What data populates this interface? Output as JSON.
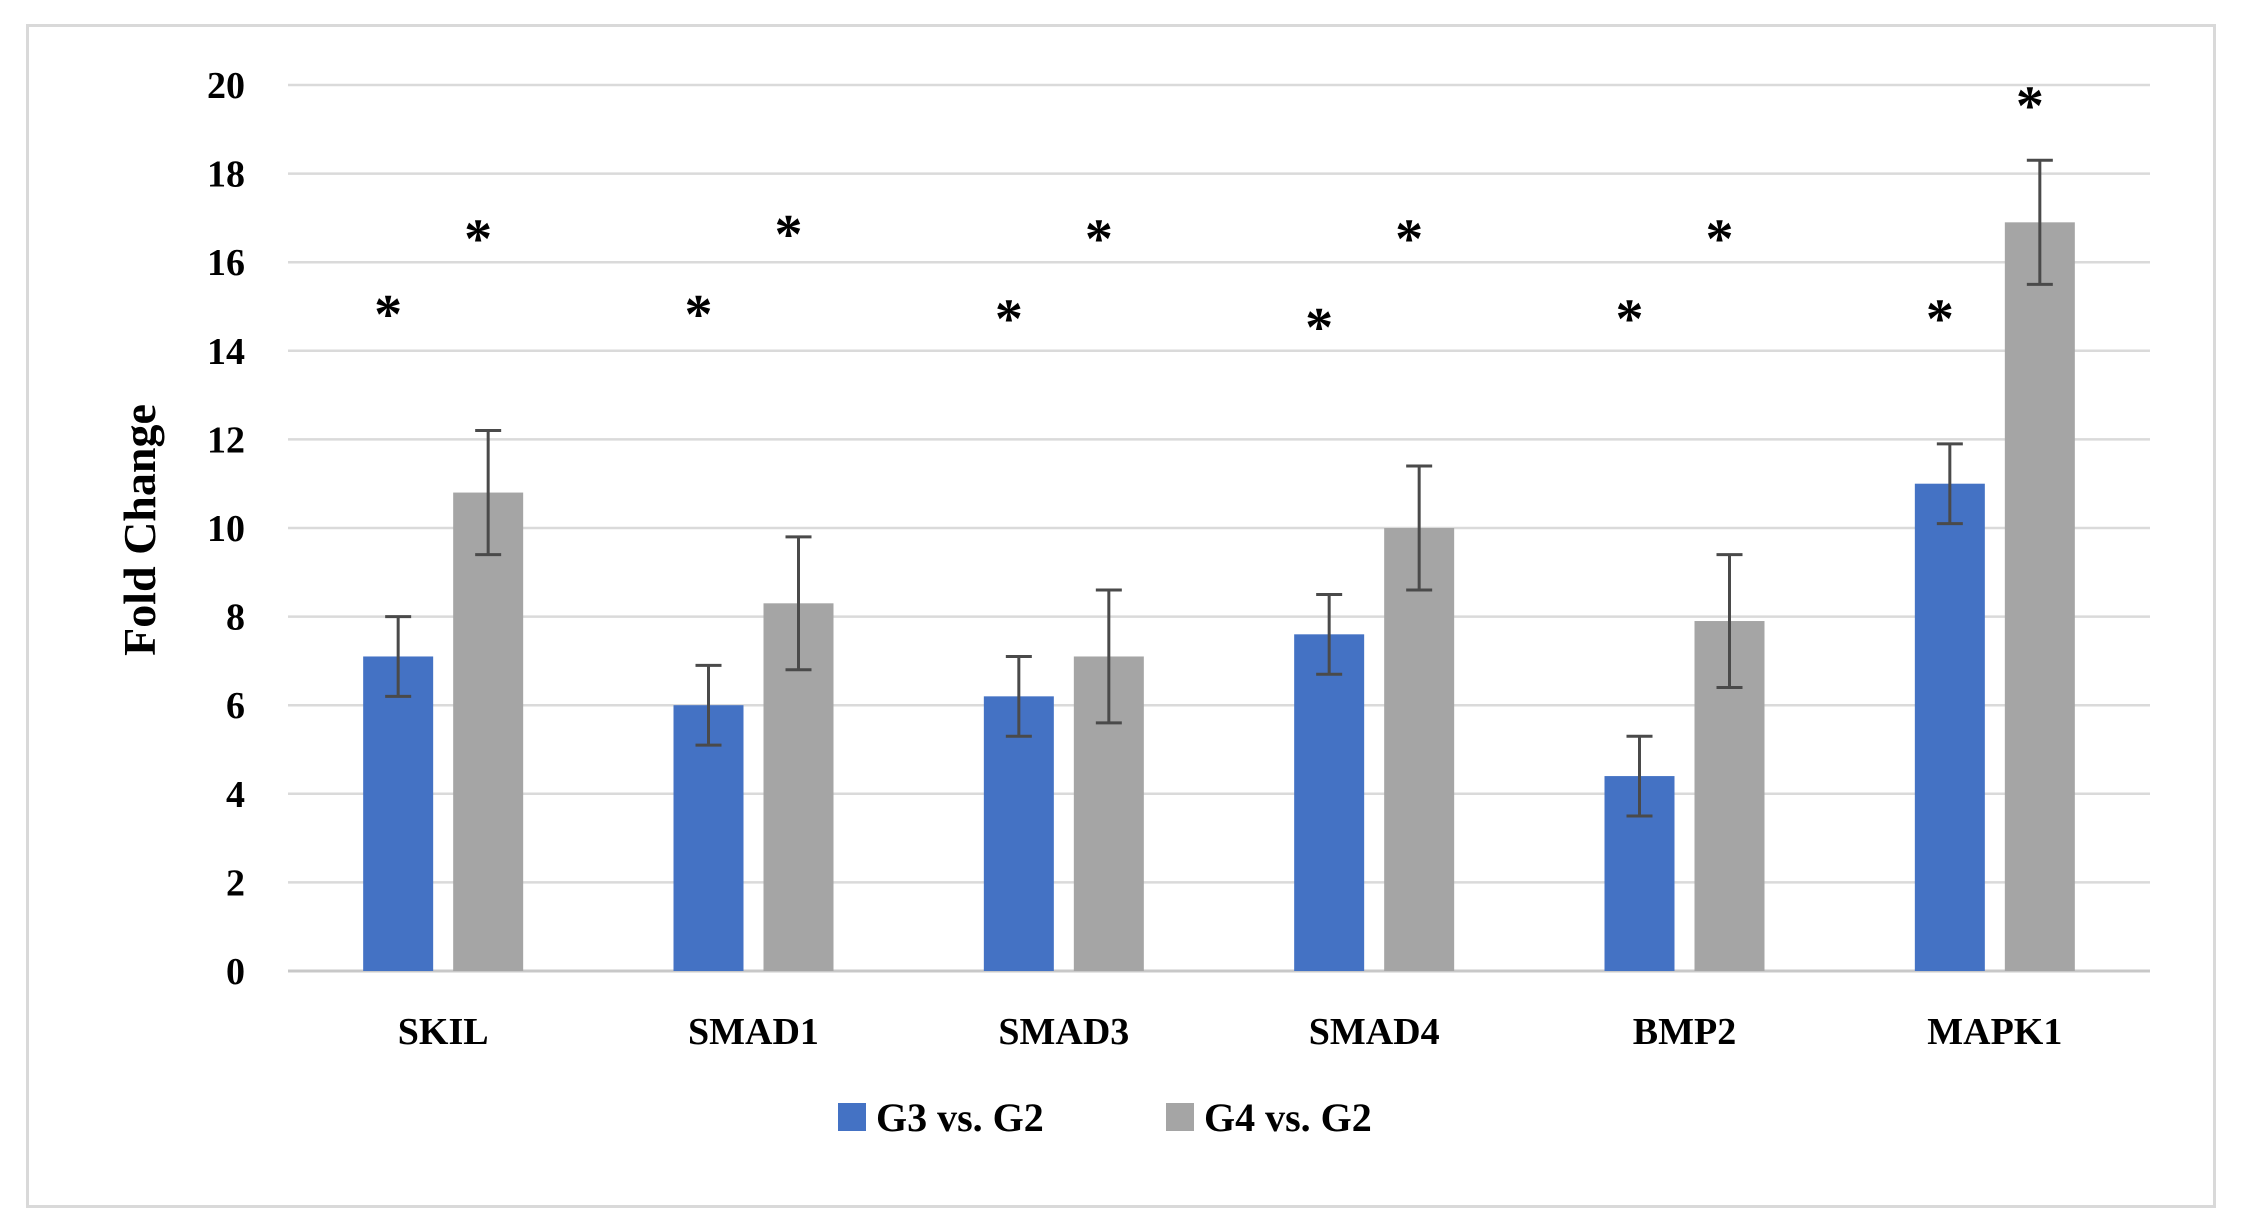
{
  "chart_data": {
    "type": "bar",
    "title": "",
    "xlabel": "",
    "ylabel": "Fold Change",
    "ylim": [
      0,
      20
    ],
    "yticks": [
      0,
      2,
      4,
      6,
      8,
      10,
      12,
      14,
      16,
      18,
      20
    ],
    "grid": true,
    "legend_position": "bottom-center",
    "categories": [
      "SKIL",
      "SMAD1",
      "SMAD3",
      "SMAD4",
      "BMP2",
      "MAPK1"
    ],
    "series": [
      {
        "name": "G3 vs. G2",
        "color": "#4472c4",
        "values": [
          7.1,
          6.0,
          6.2,
          7.6,
          4.4,
          11.0
        ],
        "errors": [
          0.9,
          0.9,
          0.9,
          0.9,
          0.9,
          0.9
        ],
        "significance": [
          "*",
          "*",
          "*",
          "*",
          "*",
          "*"
        ],
        "significance_y": [
          14.9,
          14.9,
          14.8,
          14.6,
          14.8,
          14.8
        ]
      },
      {
        "name": "G4 vs. G2",
        "color": "#a5a5a5",
        "values": [
          10.8,
          8.3,
          7.1,
          10.0,
          7.9,
          16.9
        ],
        "errors": [
          1.4,
          1.5,
          1.5,
          1.4,
          1.5,
          1.4
        ],
        "significance": [
          "*",
          "*",
          "*",
          "*",
          "*",
          "*"
        ],
        "significance_y": [
          16.6,
          16.7,
          16.6,
          16.6,
          16.6,
          19.6
        ]
      }
    ]
  }
}
